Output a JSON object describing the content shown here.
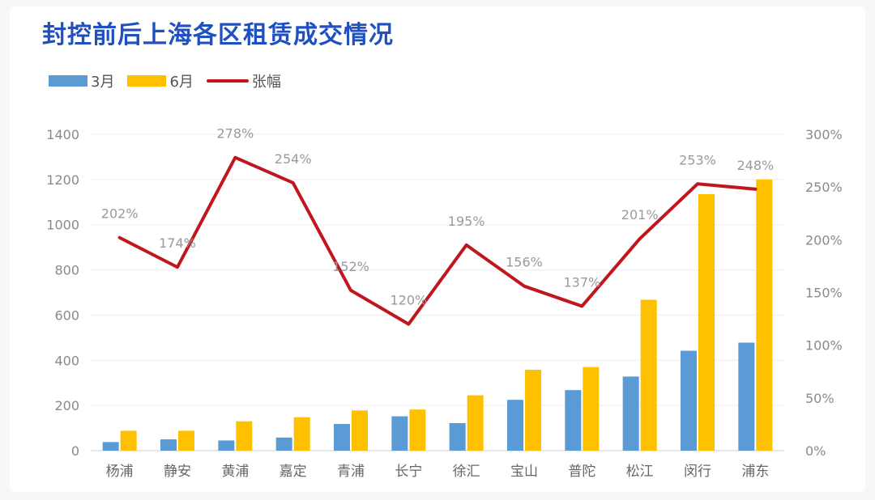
{
  "title": "封控前后上海各区租赁成交情况",
  "legend": {
    "s1": "3月",
    "s2": "6月",
    "s3": "张幅"
  },
  "colors": {
    "march": "#5b9bd5",
    "june": "#ffc000",
    "growth": "#c0161d"
  },
  "chart_data": {
    "type": "bar",
    "title": "封控前后上海各区租赁成交情况",
    "categories": [
      "杨浦",
      "静安",
      "黄浦",
      "嘉定",
      "青浦",
      "长宁",
      "徐汇",
      "宝山",
      "普陀",
      "松江",
      "闵行",
      "浦东"
    ],
    "series": [
      {
        "name": "3月",
        "type": "bar",
        "axis": "left",
        "values": [
          38,
          50,
          45,
          58,
          118,
          152,
          122,
          225,
          268,
          328,
          442,
          478
        ]
      },
      {
        "name": "6月",
        "type": "bar",
        "axis": "left",
        "values": [
          88,
          88,
          130,
          148,
          178,
          182,
          245,
          358,
          370,
          668,
          1135,
          1200
        ]
      },
      {
        "name": "张幅",
        "type": "line",
        "axis": "right",
        "values": [
          202,
          174,
          278,
          254,
          152,
          120,
          195,
          156,
          137,
          201,
          253,
          248
        ],
        "labels": [
          "202%",
          "174%",
          "278%",
          "254%",
          "152%",
          "120%",
          "195%",
          "156%",
          "137%",
          "201%",
          "253%",
          "248%"
        ]
      }
    ],
    "ylim_left": [
      0,
      1400
    ],
    "yticks_left": [
      "0",
      "200",
      "400",
      "600",
      "800",
      "1000",
      "1200",
      "1400"
    ],
    "ylim_right": [
      0,
      300
    ],
    "yticks_right": [
      "0%",
      "50%",
      "100%",
      "150%",
      "200%",
      "250%",
      "300%"
    ],
    "grid": true,
    "legend_position": "top-left"
  }
}
